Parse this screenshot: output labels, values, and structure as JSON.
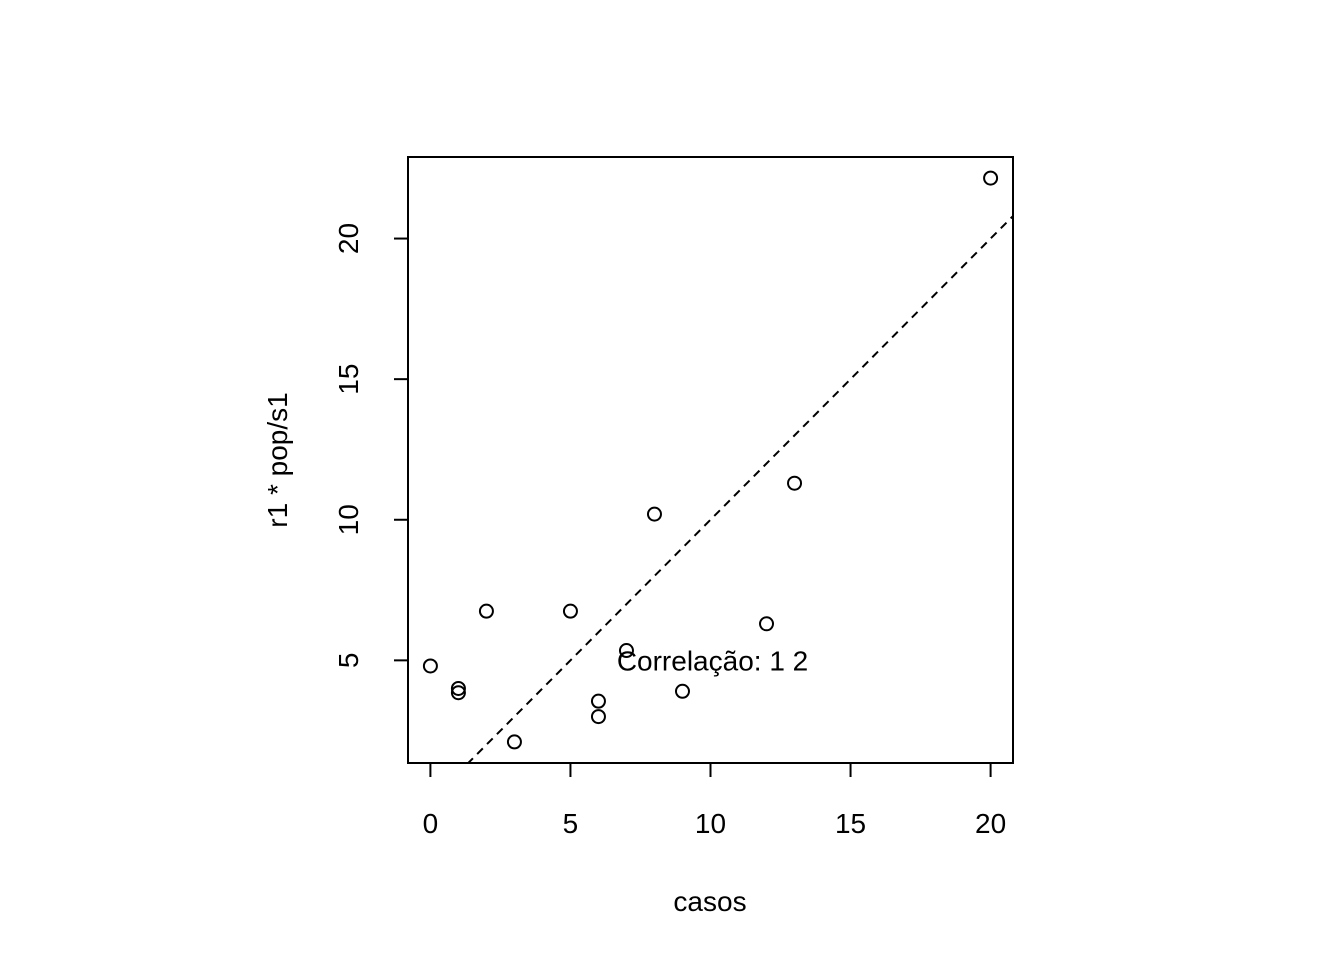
{
  "chart_data": {
    "type": "scatter",
    "title": "",
    "xlabel": "casos",
    "ylabel": "r1 * pop/s1",
    "xlim": [
      -0.8,
      20.8
    ],
    "ylim": [
      1.35,
      22.9
    ],
    "x_ticks": [
      0,
      5,
      10,
      15,
      20
    ],
    "y_ticks": [
      5,
      10,
      15,
      20
    ],
    "x_tick_labels": [
      "0",
      "5",
      "10",
      "15",
      "20"
    ],
    "y_tick_labels": [
      "5",
      "10",
      "15",
      "20"
    ],
    "grid": false,
    "legend": "none",
    "marker": "open-circle",
    "points": [
      {
        "x": 0,
        "y": 4.8
      },
      {
        "x": 1,
        "y": 4.0
      },
      {
        "x": 1,
        "y": 3.85
      },
      {
        "x": 2,
        "y": 6.75
      },
      {
        "x": 3,
        "y": 2.1
      },
      {
        "x": 5,
        "y": 6.75
      },
      {
        "x": 6,
        "y": 3.55
      },
      {
        "x": 6,
        "y": 3.0
      },
      {
        "x": 7,
        "y": 5.35
      },
      {
        "x": 8,
        "y": 10.2
      },
      {
        "x": 9,
        "y": 3.9
      },
      {
        "x": 12,
        "y": 6.3
      },
      {
        "x": 13,
        "y": 11.3
      },
      {
        "x": 20,
        "y": 22.15
      }
    ],
    "reference_line": {
      "style": "dashed",
      "intercept": 0,
      "slope": 1
    },
    "annotation": {
      "text": "Correlação:  1 2",
      "x": 15,
      "y": 5
    }
  }
}
